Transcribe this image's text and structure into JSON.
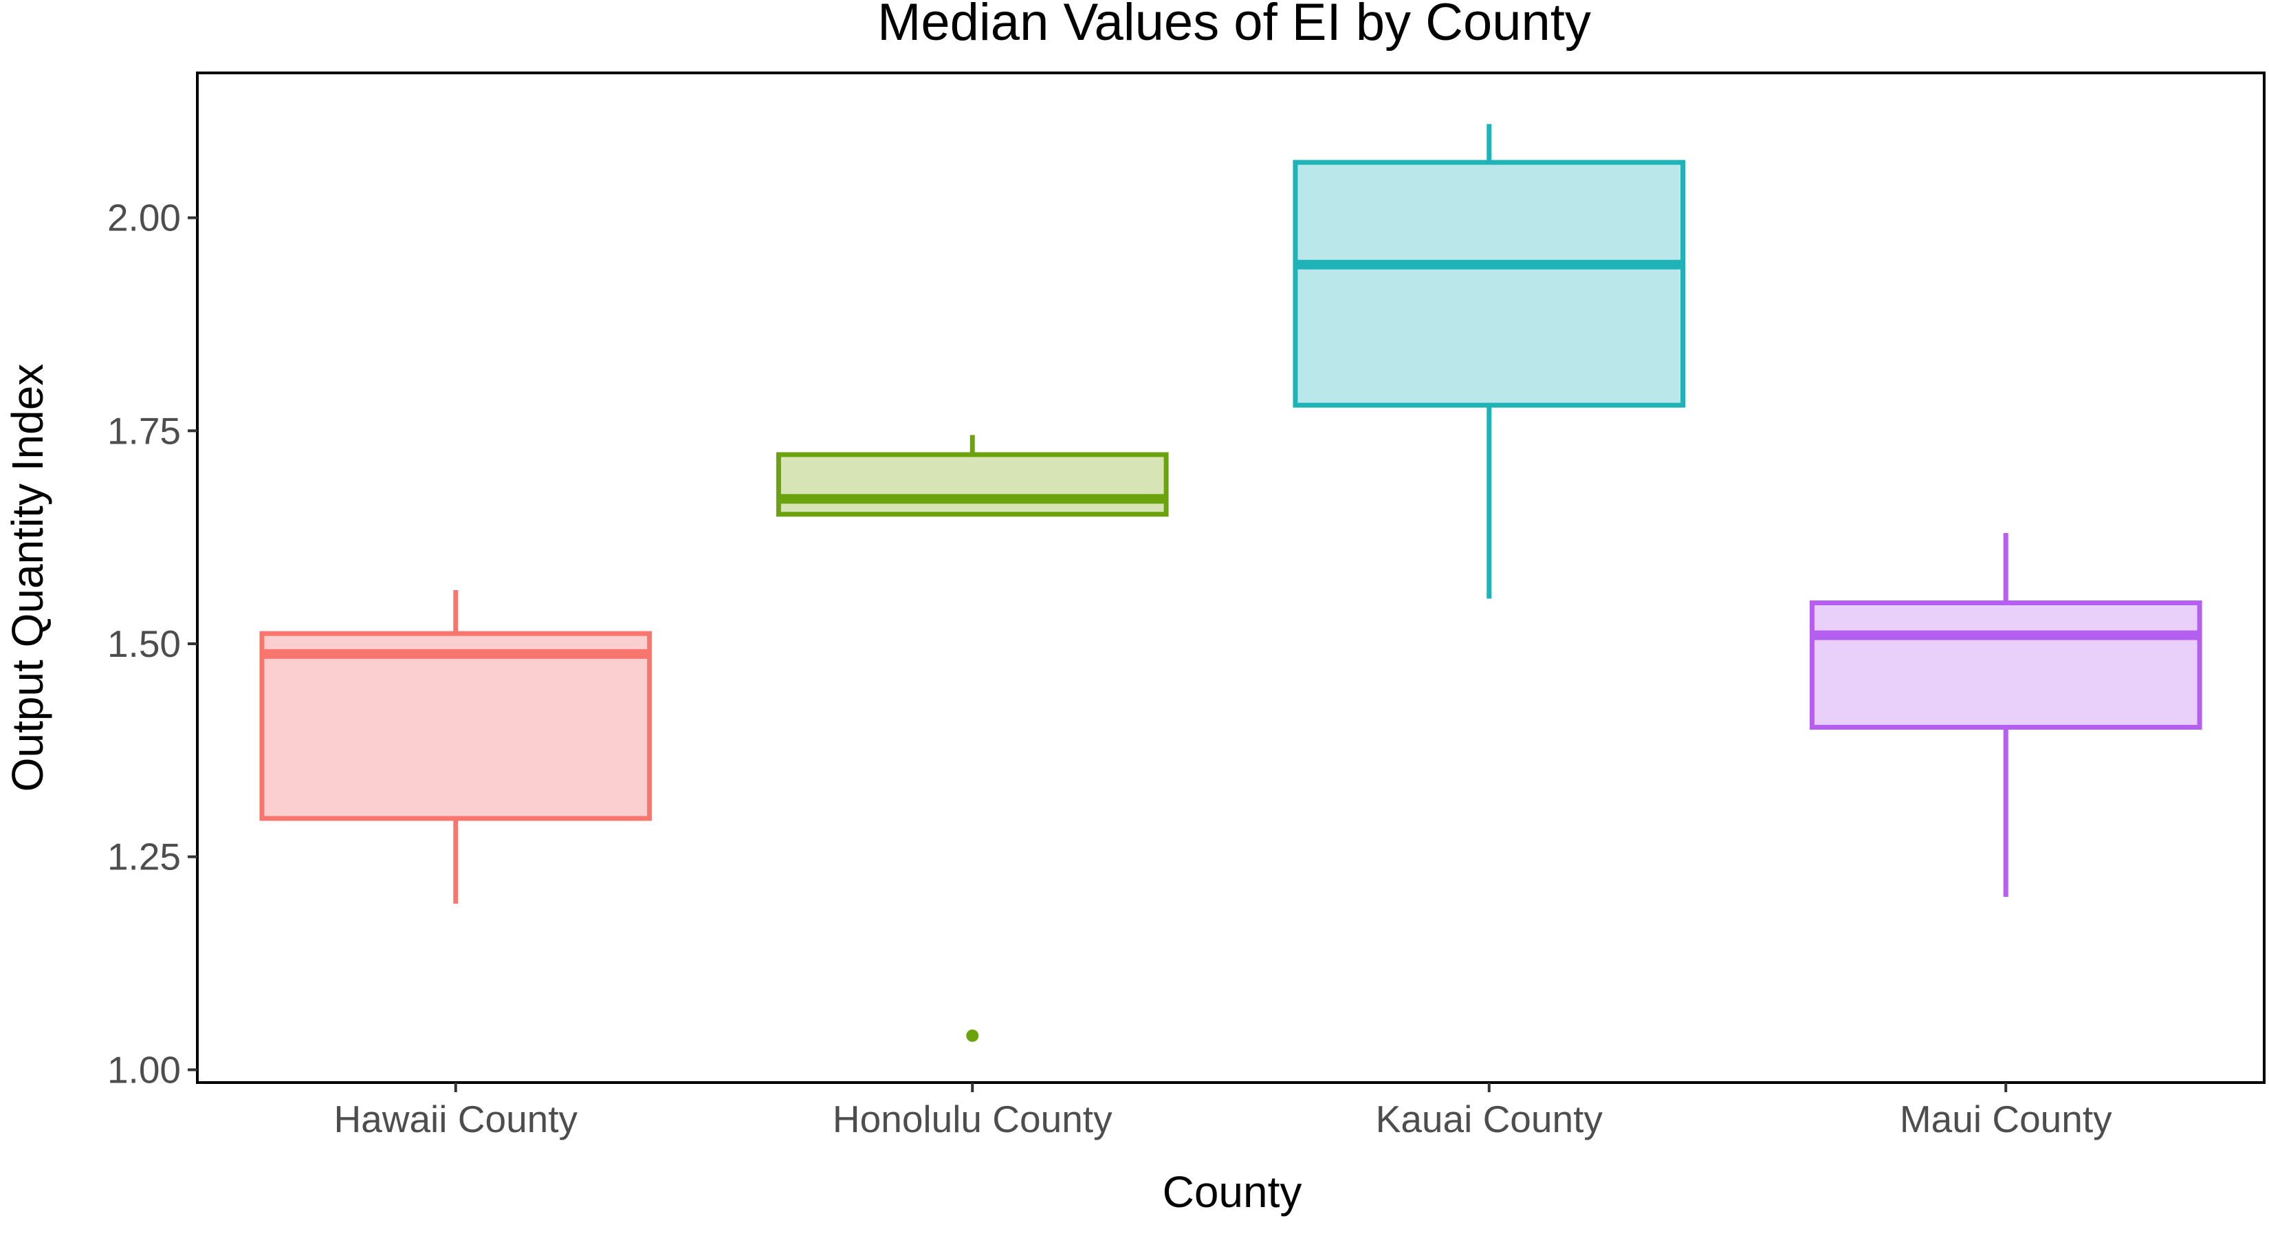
{
  "chart_data": {
    "type": "box",
    "title": "Median Values of EI by County",
    "xlabel": "County",
    "ylabel": "Output Quantity Index",
    "ylim": [
      0.985,
      2.17
    ],
    "yticks": [
      1.0,
      1.25,
      1.5,
      1.75,
      2.0
    ],
    "ytick_labels": [
      "1.00",
      "1.25",
      "1.50",
      "1.75",
      "2.00"
    ],
    "grid": false,
    "legend": "none",
    "categories": [
      "Hawaii County",
      "Honolulu County",
      "Kauai County",
      "Maui County"
    ],
    "boxes": [
      {
        "category": "Hawaii County",
        "whisker_low": 1.195,
        "q1": 1.295,
        "median": 1.488,
        "q3": 1.512,
        "whisker_high": 1.563,
        "outliers": [],
        "color": "#F8766D",
        "fill": "#FBCFCF"
      },
      {
        "category": "Honolulu County",
        "whisker_low": 1.652,
        "q1": 1.652,
        "median": 1.67,
        "q3": 1.722,
        "whisker_high": 1.745,
        "outliers": [
          1.04
        ],
        "color": "#6BA30E",
        "fill": "#D7E4B6"
      },
      {
        "category": "Kauai County",
        "whisker_low": 1.553,
        "q1": 1.78,
        "median": 1.945,
        "q3": 2.065,
        "whisker_high": 2.11,
        "outliers": [],
        "color": "#1FB3B8",
        "fill": "#BAE7EA"
      },
      {
        "category": "Maui County",
        "whisker_low": 1.203,
        "q1": 1.402,
        "median": 1.51,
        "q3": 1.548,
        "whisker_high": 1.63,
        "outliers": [],
        "color": "#B45FF0",
        "fill": "#E9D0FB"
      }
    ]
  }
}
